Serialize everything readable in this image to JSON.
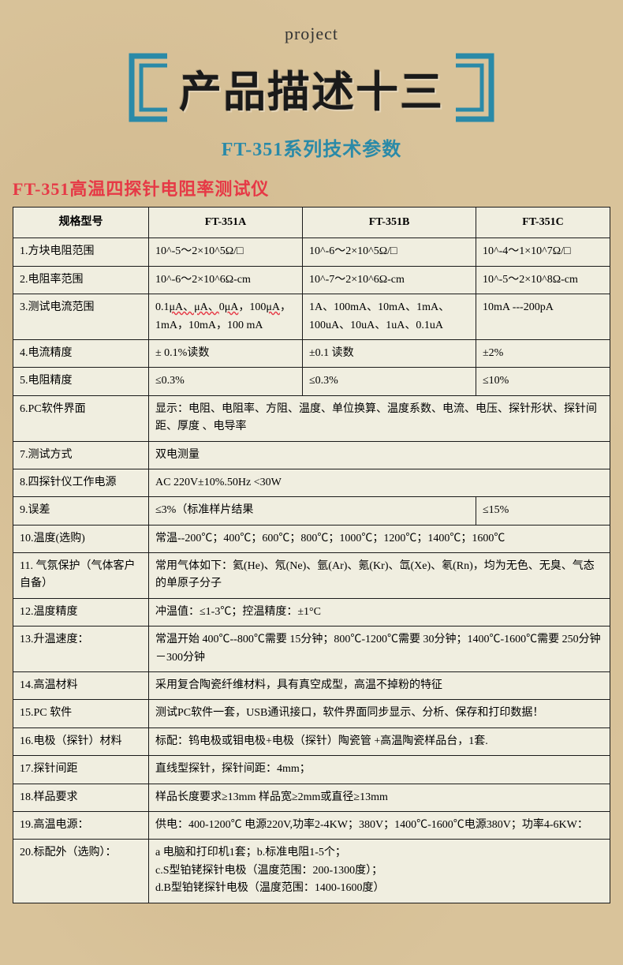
{
  "header": {
    "project_label": "project",
    "main_title": "产品描述十三",
    "subtitle": "FT-351系列技术参数"
  },
  "section_title": "FT-351高温四探针电阻率测试仪",
  "table": {
    "header": {
      "spec": "规格型号",
      "col_a": "FT-351A",
      "col_b": "FT-351B",
      "col_c": "FT-351C"
    },
    "rows": [
      {
        "label": "1.方块电阻范围",
        "a": "10^-5～2×10^5Ω/□",
        "b": "10^-6～2×10^5Ω/□",
        "c": "10^-4～1×10^7Ω/□"
      },
      {
        "label": "2.电阻率范围",
        "a": "10^-6～2×10^6Ω-cm",
        "b": "10^-7～2×10^6Ω-cm",
        "c": "10^-5～2×10^8Ω-cm"
      },
      {
        "label": "3.测试电流范围",
        "a": "0.1μA、μA、0μA，100μA，1mA，10mA，100 mA",
        "b": "1A、100mA、10mA、1mA、100uA、10uA、1uA、0.1uA",
        "c": "10mA  ---200pA"
      },
      {
        "label": "4.电流精度",
        "a": "± 0.1%读数",
        "b": "±0.1 读数",
        "c": "±2%"
      },
      {
        "label": "5.电阻精度",
        "a": "≤0.3%",
        "b": "≤0.3%",
        "c": "≤10%"
      },
      {
        "label": "6.PC软件界面",
        "merged": "显示：电阻、电阻率、方阻、温度、单位换算、温度系数、电流、电压、探针形状、探针间距、厚度 、电导率",
        "span": 3
      },
      {
        "label": "7.测试方式",
        "merged": "双电测量",
        "span": 3
      },
      {
        "label": "8.四探针仪工作电源",
        "merged": "AC 220V±10%.50Hz  <30W",
        "span": 3
      },
      {
        "label": "9.误差",
        "a2": "≤3%（标准样片结果",
        "c": "≤15%",
        "span2": 2
      },
      {
        "label": "10.温度(选购)",
        "merged": "常温--200℃；400℃；600℃；800℃；1000℃；1200℃；1400℃；1600℃",
        "span": 3
      },
      {
        "label": "11. 气氛保护（气体客户自备）",
        "merged": "常用气体如下：氦(He)、氖(Ne)、氩(Ar)、氪(Kr)、氙(Xe)、氡(Rn)，均为无色、无臭、气态的单原子分子",
        "span": 3
      },
      {
        "label": "12.温度精度",
        "merged": "冲温值：≤1-3℃；控温精度：±1°C",
        "span": 3
      },
      {
        "label": "13.升温速度：",
        "merged": "常温开始 400℃--800℃需要 15分钟；800℃-1200℃需要 30分钟；1400℃-1600℃需要 250分钟－300分钟",
        "span": 3
      },
      {
        "label": "14.高温材料",
        "merged": "采用复合陶瓷纤维材料，具有真空成型，高温不掉粉的特征",
        "span": 3
      },
      {
        "label": "15.PC 软件",
        "merged": "测试PC软件一套，USB通讯接口，软件界面同步显示、分析、保存和打印数据！",
        "span": 3
      },
      {
        "label": "16.电极（探针）材料",
        "merged": "标配：钨电极或钼电极+电极（探针）陶瓷管 +高温陶瓷样品台，1套.",
        "span": 3
      },
      {
        "label": "17.探针间距",
        "merged": "直线型探针，探针间距：4mm；",
        "span": 3
      },
      {
        "label": "18.样品要求",
        "merged": "样品长度要求≥13mm  样品宽≥2mm或直径≥13mm",
        "span": 3
      },
      {
        "label": "19.高温电源：",
        "merged": "供电：400-1200℃ 电源220V,功率2-4KW；380V；1400℃-1600℃电源380V；功率4-6KW：",
        "span": 3
      },
      {
        "label": "20.标配外（选购）：",
        "merged": "a 电脑和打印机1套；b.标准电阻1-5个；\nc.S型铂铑探针电极（温度范围：200-1300度）；\nd.B型铂铑探针电极（温度范围：1400-1600度）",
        "span": 3
      }
    ]
  },
  "colors": {
    "bracket": "#2a8aa8",
    "subtitle": "#2a8aa8",
    "section_title": "#e63946",
    "border": "#1a1a1a",
    "cell_bg": "#f0eee0",
    "page_bg": "#d9c39a"
  }
}
